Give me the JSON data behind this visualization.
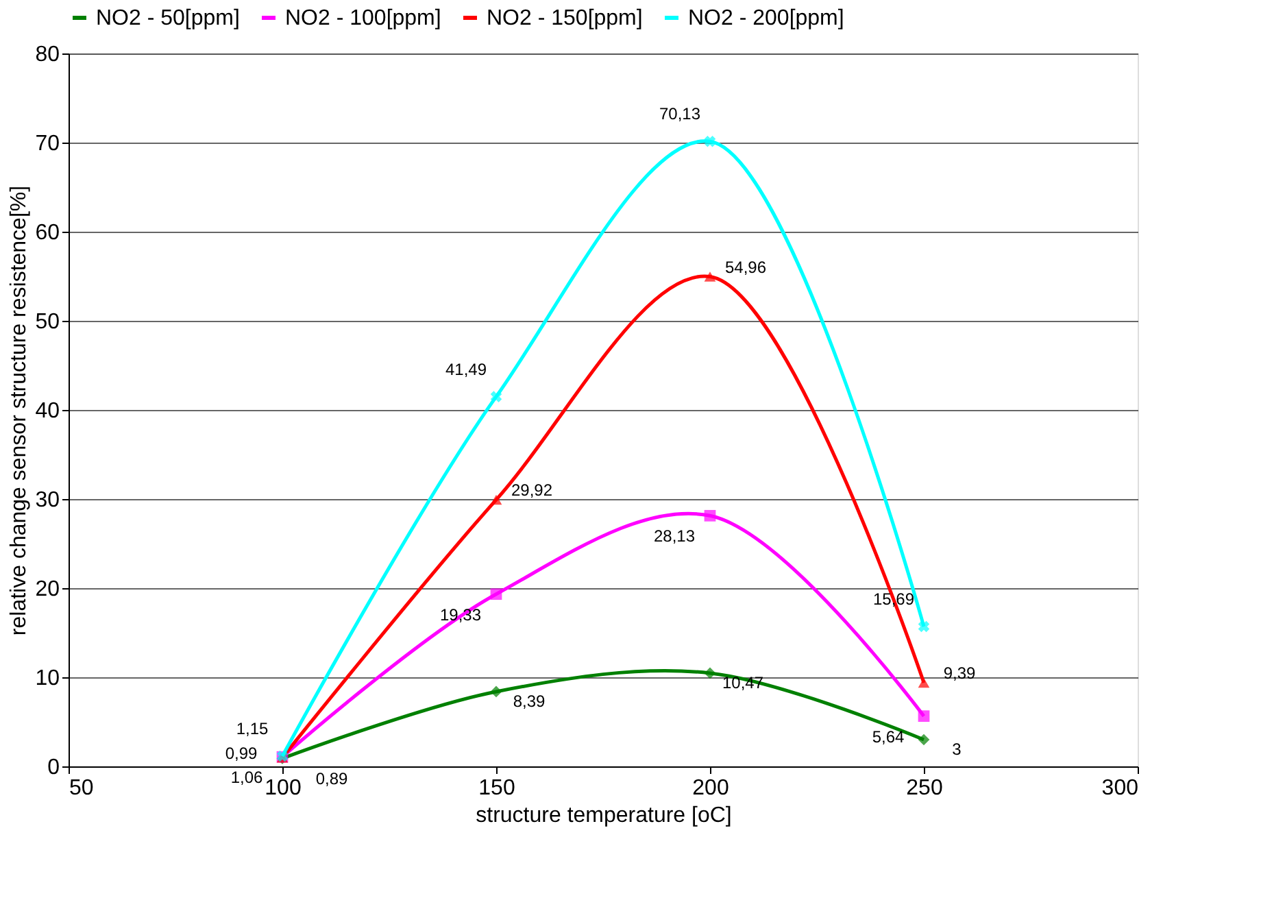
{
  "chart_data": {
    "type": "line",
    "xlabel": "structure temperature [oC]",
    "ylabel": "relative change sensor structure resistence[%]",
    "x": [
      100,
      150,
      200,
      250
    ],
    "series": [
      {
        "name": "NO2 - 50[ppm]",
        "color": "#008000",
        "marker": "diamond",
        "values": [
          0.89,
          8.39,
          10.47,
          3
        ],
        "value_labels": [
          "0,89",
          "8,39",
          "10,47",
          "3"
        ]
      },
      {
        "name": "NO2 - 100[ppm]",
        "color": "#ff00ff",
        "marker": "square",
        "values": [
          1.06,
          19.33,
          28.13,
          5.64
        ],
        "value_labels": [
          "1,06",
          "19,33",
          "28,13",
          "5,64"
        ]
      },
      {
        "name": "NO2 - 150[ppm]",
        "color": "#ff0000",
        "marker": "triangle",
        "values": [
          0.99,
          29.92,
          54.96,
          9.39
        ],
        "value_labels": [
          "0,99",
          "29,92",
          "54,96",
          "9,39"
        ]
      },
      {
        "name": "NO2 - 200[ppm]",
        "color": "#00ffff",
        "marker": "cross",
        "values": [
          1.15,
          41.49,
          70.13,
          15.69
        ],
        "value_labels": [
          "1,15",
          "41,49",
          "70,13",
          "15,69"
        ]
      }
    ],
    "xlim": [
      50,
      300
    ],
    "xticks": [
      50,
      100,
      150,
      200,
      250,
      300
    ],
    "ylim": [
      0,
      80
    ],
    "yticks": [
      0,
      10,
      20,
      30,
      40,
      50,
      60,
      70,
      80
    ],
    "grid": "y",
    "legend": "top",
    "line_style": "solid"
  }
}
